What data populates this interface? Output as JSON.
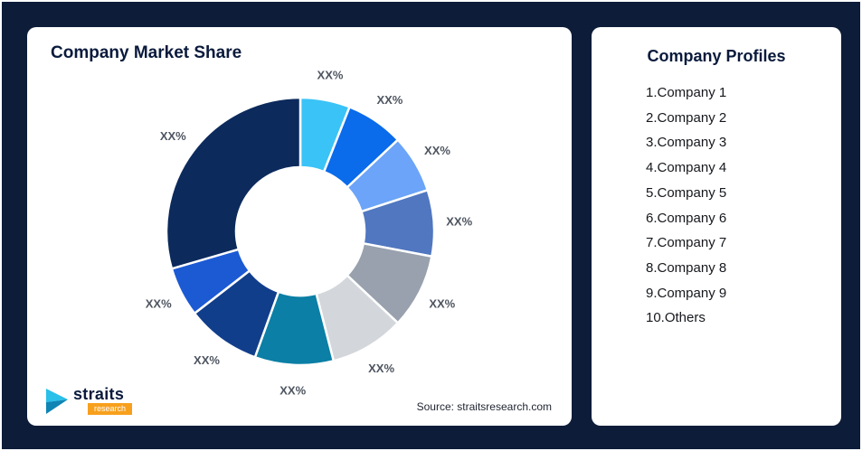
{
  "background_color": "#0D1C38",
  "left_card": {
    "title": "Company Market Share",
    "source": "Source: straitsresearch.com",
    "logo": {
      "brand": "straits",
      "sub": "research"
    }
  },
  "right_card": {
    "title": "Company Profiles",
    "items": [
      "1.Company 1",
      "2.Company 2",
      "3.Company 3",
      "4.Company 4",
      "5.Company 5",
      "6.Company 6",
      "7.Company 7",
      "8.Company 8",
      "9.Company 9",
      "10.Others"
    ]
  },
  "chart_data": {
    "type": "pie",
    "subtype": "donut",
    "title": "Company Market Share",
    "labels": [
      "Company 1",
      "Company 2",
      "Company 3",
      "Company 4",
      "Company 5",
      "Company 6",
      "Company 7",
      "Company 8",
      "Company 9",
      "Others"
    ],
    "slice_label_text": "XX%",
    "values_estimated_pct": [
      6,
      7,
      7,
      8,
      9,
      9,
      9.5,
      9,
      6,
      29.5
    ],
    "colors": [
      "#3AC3F6",
      "#0A6BEB",
      "#6BA4F8",
      "#5077C0",
      "#98A1AD",
      "#D3D7DC",
      "#0B7FA5",
      "#113E8B",
      "#1C5AD4",
      "#0C2A5C"
    ],
    "start_angle_deg": 0,
    "inner_radius_ratio": 0.48,
    "legend": "none",
    "grid": false
  }
}
